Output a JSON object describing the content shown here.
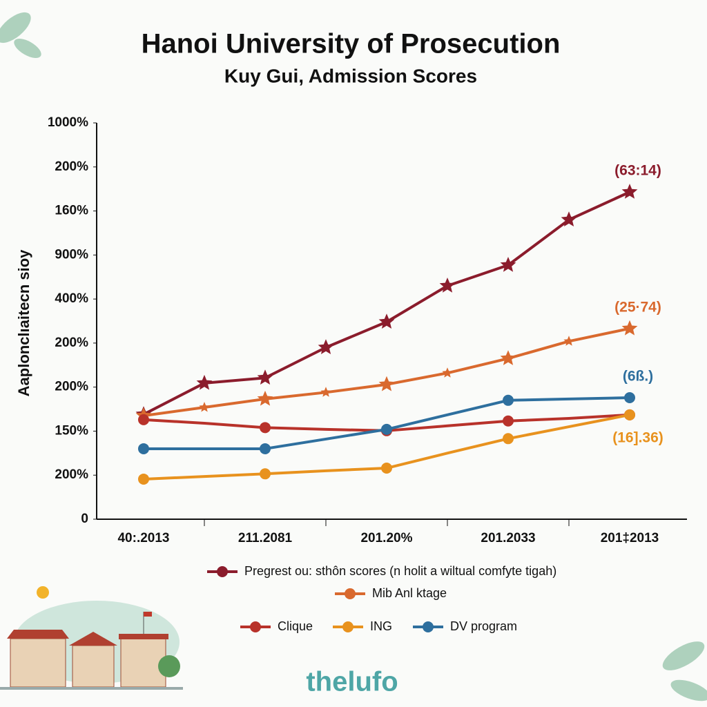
{
  "chart_data": {
    "type": "line",
    "title": "Hanoi University of Prosecution",
    "subtitle": "Kuy Gui, Admission Scores",
    "y_label": "Aaplonclıaitecn sioy",
    "categories": [
      "40:.2013",
      null,
      "211.2081",
      null,
      "201.20%",
      null,
      "201.2033",
      null,
      "201‡2013"
    ],
    "ylim": [
      0,
      9
    ],
    "yticks": [
      {
        "value": 0,
        "label": "0"
      },
      {
        "value": 1,
        "label": "200%"
      },
      {
        "value": 2,
        "label": "150%"
      },
      {
        "value": 3,
        "label": "200%"
      },
      {
        "value": 4,
        "label": "200%"
      },
      {
        "value": 5,
        "label": "400%"
      },
      {
        "value": 6,
        "label": "900%"
      },
      {
        "value": 7,
        "label": "160%"
      },
      {
        "value": 8,
        "label": "200%"
      },
      {
        "value": 9,
        "label": "1000%"
      }
    ],
    "series": [
      {
        "name": "Pregrest ou: sthôn scores (n holit a wiltual comfyte tigah)",
        "color": "#8b1c2c",
        "marker": "star",
        "annotation": "(63:14)",
        "values": [
          2.38,
          3.09,
          3.21,
          3.9,
          4.48,
          5.3,
          5.77,
          6.8,
          7.43
        ]
      },
      {
        "name": "Mib Anl ktage",
        "color": "#d9692e",
        "marker": "star",
        "annotation": "(25·74)",
        "values": [
          2.35,
          2.54,
          2.73,
          2.88,
          3.06,
          3.32,
          3.65,
          4.04,
          4.33
        ]
      },
      {
        "name": "Clique",
        "color": "#b8322a",
        "marker": "circle",
        "values": [
          2.26,
          2.18,
          2.08,
          2.04,
          2.01,
          2.12,
          2.23,
          2.29,
          2.37
        ]
      },
      {
        "name": "ING",
        "color": "#e8921e",
        "marker": "circle",
        "annotation": "(16].36)",
        "values": [
          0.91,
          0.97,
          1.03,
          1.1,
          1.16,
          1.5,
          1.83,
          2.1,
          2.37
        ]
      },
      {
        "name": "DV program",
        "color": "#2e6f9e",
        "marker": "circle",
        "annotation": "(6ß.)",
        "values": [
          1.6,
          1.6,
          1.6,
          1.82,
          2.04,
          2.37,
          2.7,
          2.73,
          2.76
        ]
      }
    ],
    "footer": "thelufo"
  }
}
